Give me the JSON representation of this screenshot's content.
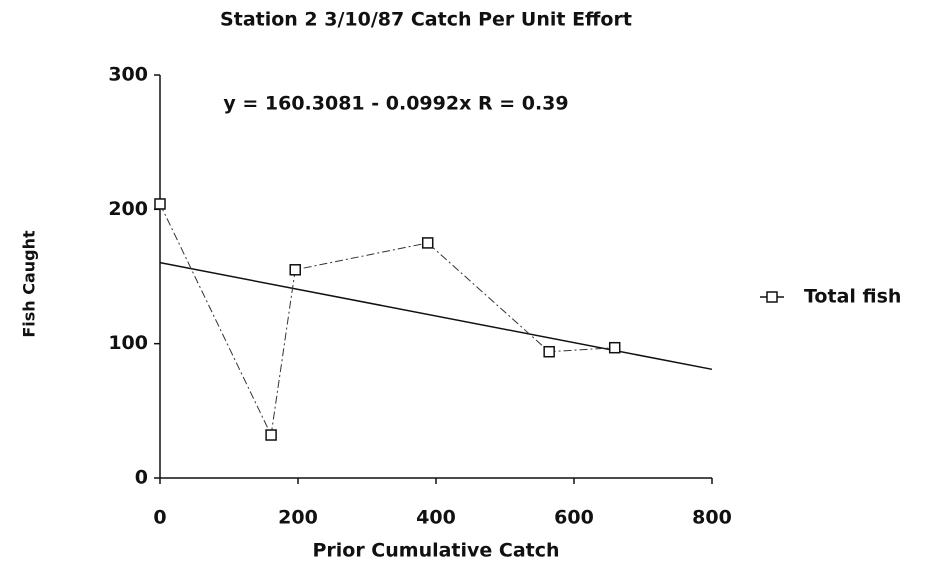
{
  "chart_data": {
    "type": "line",
    "title": "Station 2 3/10/87 Catch Per Unit Effort",
    "annotation": "y = 160.3081 - 0.0992x   R = 0.39",
    "x_label": "Prior Cumulative Catch",
    "y_label": "Fish Caught",
    "x": [
      0,
      161,
      196,
      388,
      564,
      659
    ],
    "series": [
      {
        "name": "Total fish",
        "color": "#333333",
        "values": [
          204,
          32,
          155,
          175,
          94,
          97
        ]
      }
    ],
    "trendline": {
      "x": [
        0,
        800
      ],
      "values": [
        160.3,
        80.9
      ],
      "color": "#111111"
    },
    "xlim": [
      0,
      800
    ],
    "ylim": [
      0,
      300
    ],
    "xticks": [
      0,
      200,
      400,
      600,
      800
    ],
    "yticks": [
      0,
      100,
      200,
      300
    ],
    "legend": "right"
  }
}
